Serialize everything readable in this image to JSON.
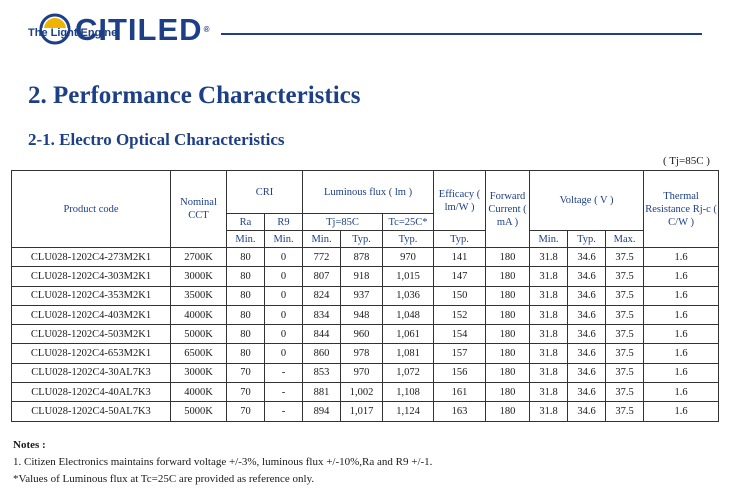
{
  "brand": {
    "name": "CITILED",
    "registered_mark": "®",
    "tagline": "The Light Engine",
    "colors": {
      "primary": "#1c3f87",
      "accent": "#f0b400"
    }
  },
  "section_title": "2. Performance Characteristics",
  "subsection_title": "2-1. Electro Optical Characteristics",
  "condition_note": "( Tj=85C )",
  "table": {
    "headers": {
      "product_code": "Product code",
      "nominal_cct": "Nominal CCT",
      "cri": "CRI",
      "ra": "Ra",
      "r9": "R9",
      "luminous_flux": "Luminous flux ( lm )",
      "tj85": "Tj=85C",
      "tc25": "Tc=25C*",
      "efficacy": "Efficacy ( lm/W )",
      "forward_current": "Forward Current ( mA )",
      "voltage": "Voltage ( V )",
      "thermal_resistance": "Thermal Resistance Rj-c ( C/W )",
      "min": "Min.",
      "typ": "Typ.",
      "max": "Max."
    },
    "rows": [
      [
        "CLU028-1202C4-273M2K1",
        "2700K",
        "80",
        "0",
        "772",
        "878",
        "970",
        "141",
        "180",
        "31.8",
        "34.6",
        "37.5",
        "1.6"
      ],
      [
        "CLU028-1202C4-303M2K1",
        "3000K",
        "80",
        "0",
        "807",
        "918",
        "1,015",
        "147",
        "180",
        "31.8",
        "34.6",
        "37.5",
        "1.6"
      ],
      [
        "CLU028-1202C4-353M2K1",
        "3500K",
        "80",
        "0",
        "824",
        "937",
        "1,036",
        "150",
        "180",
        "31.8",
        "34.6",
        "37.5",
        "1.6"
      ],
      [
        "CLU028-1202C4-403M2K1",
        "4000K",
        "80",
        "0",
        "834",
        "948",
        "1,048",
        "152",
        "180",
        "31.8",
        "34.6",
        "37.5",
        "1.6"
      ],
      [
        "CLU028-1202C4-503M2K1",
        "5000K",
        "80",
        "0",
        "844",
        "960",
        "1,061",
        "154",
        "180",
        "31.8",
        "34.6",
        "37.5",
        "1.6"
      ],
      [
        "CLU028-1202C4-653M2K1",
        "6500K",
        "80",
        "0",
        "860",
        "978",
        "1,081",
        "157",
        "180",
        "31.8",
        "34.6",
        "37.5",
        "1.6"
      ],
      [
        "CLU028-1202C4-30AL7K3",
        "3000K",
        "70",
        "-",
        "853",
        "970",
        "1,072",
        "156",
        "180",
        "31.8",
        "34.6",
        "37.5",
        "1.6"
      ],
      [
        "CLU028-1202C4-40AL7K3",
        "4000K",
        "70",
        "-",
        "881",
        "1,002",
        "1,108",
        "161",
        "180",
        "31.8",
        "34.6",
        "37.5",
        "1.6"
      ],
      [
        "CLU028-1202C4-50AL7K3",
        "5000K",
        "70",
        "-",
        "894",
        "1,017",
        "1,124",
        "163",
        "180",
        "31.8",
        "34.6",
        "37.5",
        "1.6"
      ]
    ]
  },
  "notes": {
    "title": "Notes :",
    "lines": [
      "1. Citizen Electronics maintains forward voltage +/-3%, luminous flux +/-10%,Ra and R9 +/-1.",
      "*Values of Luminous flux at Tc=25C are provided as reference only."
    ]
  }
}
